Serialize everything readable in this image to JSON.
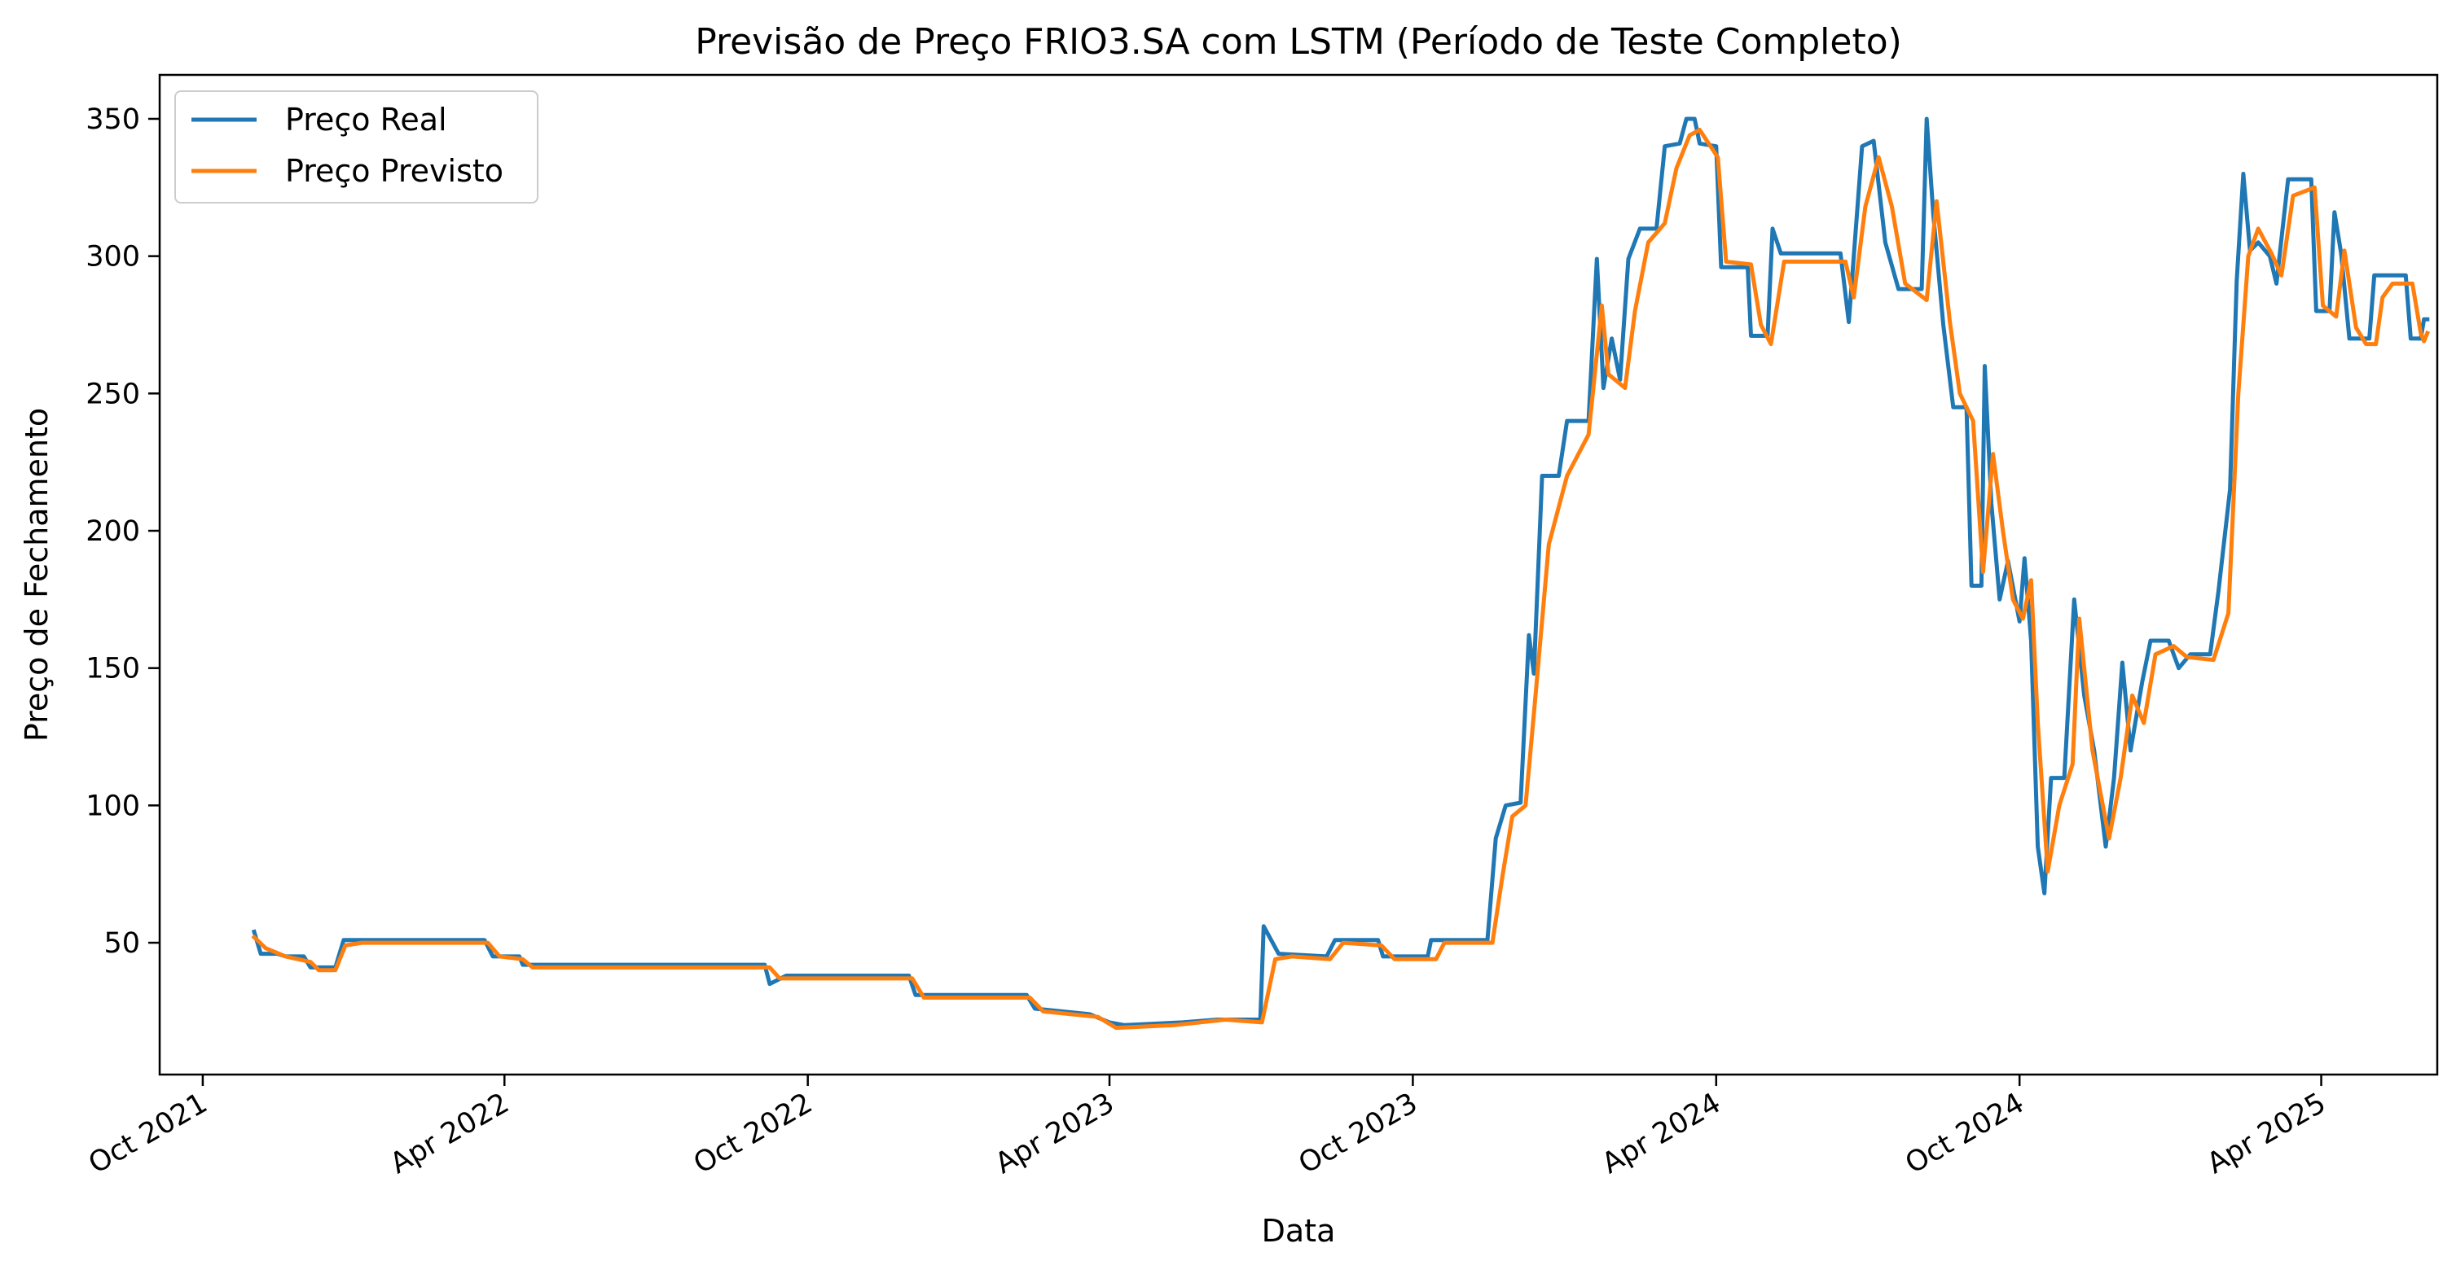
{
  "chart_data": {
    "type": "line",
    "title": "Previsão de Preço FRIO3.SA com LSTM (Período de Teste Completo)",
    "xlabel": "Data",
    "ylabel": "Preço de Fechamento",
    "xlim": [
      "2021-09-05",
      "2025-06-10"
    ],
    "ylim": [
      2,
      366
    ],
    "x_ticks": [
      {
        "date": "2021-10-01",
        "label": "Oct 2021"
      },
      {
        "date": "2022-04-01",
        "label": "Apr 2022"
      },
      {
        "date": "2022-10-01",
        "label": "Oct 2022"
      },
      {
        "date": "2023-04-01",
        "label": "Apr 2023"
      },
      {
        "date": "2023-10-01",
        "label": "Oct 2023"
      },
      {
        "date": "2024-04-01",
        "label": "Apr 2024"
      },
      {
        "date": "2024-10-01",
        "label": "Oct 2024"
      },
      {
        "date": "2025-04-01",
        "label": "Apr 2025"
      }
    ],
    "y_ticks": [
      50,
      100,
      150,
      200,
      250,
      300,
      350
    ],
    "grid": false,
    "legend_position": "top-left",
    "series": [
      {
        "name": "Preço Real",
        "color": "#1f77b4",
        "points": [
          [
            "2021-11-01",
            54
          ],
          [
            "2021-11-05",
            46
          ],
          [
            "2021-11-15",
            46
          ],
          [
            "2021-11-20",
            45
          ],
          [
            "2021-12-01",
            45
          ],
          [
            "2021-12-05",
            41
          ],
          [
            "2021-12-20",
            41
          ],
          [
            "2021-12-25",
            51
          ],
          [
            "2022-03-20",
            51
          ],
          [
            "2022-03-25",
            45
          ],
          [
            "2022-04-10",
            45
          ],
          [
            "2022-04-12",
            42
          ],
          [
            "2022-09-05",
            42
          ],
          [
            "2022-09-08",
            35
          ],
          [
            "2022-09-18",
            38
          ],
          [
            "2022-12-01",
            38
          ],
          [
            "2022-12-05",
            31
          ],
          [
            "2023-02-10",
            31
          ],
          [
            "2023-02-15",
            26
          ],
          [
            "2023-03-20",
            24
          ],
          [
            "2023-04-01",
            21
          ],
          [
            "2023-04-10",
            20
          ],
          [
            "2023-05-15",
            21
          ],
          [
            "2023-06-05",
            22
          ],
          [
            "2023-07-01",
            22
          ],
          [
            "2023-07-03",
            56
          ],
          [
            "2023-07-12",
            46
          ],
          [
            "2023-08-10",
            45
          ],
          [
            "2023-08-15",
            51
          ],
          [
            "2023-09-10",
            51
          ],
          [
            "2023-09-13",
            45
          ],
          [
            "2023-10-10",
            45
          ],
          [
            "2023-10-12",
            51
          ],
          [
            "2023-11-15",
            51
          ],
          [
            "2023-11-20",
            88
          ],
          [
            "2023-11-26",
            100
          ],
          [
            "2023-12-05",
            101
          ],
          [
            "2023-12-10",
            162
          ],
          [
            "2023-12-13",
            148
          ],
          [
            "2023-12-18",
            220
          ],
          [
            "2023-12-28",
            220
          ],
          [
            "2024-01-02",
            240
          ],
          [
            "2024-01-15",
            240
          ],
          [
            "2024-01-20",
            299
          ],
          [
            "2024-01-24",
            252
          ],
          [
            "2024-01-29",
            270
          ],
          [
            "2024-02-03",
            255
          ],
          [
            "2024-02-08",
            299
          ],
          [
            "2024-02-15",
            310
          ],
          [
            "2024-02-25",
            310
          ],
          [
            "2024-03-01",
            340
          ],
          [
            "2024-03-10",
            341
          ],
          [
            "2024-03-14",
            350
          ],
          [
            "2024-03-19",
            350
          ],
          [
            "2024-03-22",
            341
          ],
          [
            "2024-04-01",
            340
          ],
          [
            "2024-04-04",
            296
          ],
          [
            "2024-04-20",
            296
          ],
          [
            "2024-04-22",
            271
          ],
          [
            "2024-05-02",
            271
          ],
          [
            "2024-05-05",
            310
          ],
          [
            "2024-05-10",
            301
          ],
          [
            "2024-06-15",
            301
          ],
          [
            "2024-06-20",
            276
          ],
          [
            "2024-06-28",
            340
          ],
          [
            "2024-07-05",
            342
          ],
          [
            "2024-07-12",
            305
          ],
          [
            "2024-07-20",
            288
          ],
          [
            "2024-08-03",
            288
          ],
          [
            "2024-08-06",
            350
          ],
          [
            "2024-08-10",
            315
          ],
          [
            "2024-08-16",
            275
          ],
          [
            "2024-08-22",
            245
          ],
          [
            "2024-08-30",
            245
          ],
          [
            "2024-09-02",
            180
          ],
          [
            "2024-09-08",
            180
          ],
          [
            "2024-09-10",
            260
          ],
          [
            "2024-09-14",
            210
          ],
          [
            "2024-09-19",
            175
          ],
          [
            "2024-09-24",
            189
          ],
          [
            "2024-10-01",
            167
          ],
          [
            "2024-10-04",
            190
          ],
          [
            "2024-10-08",
            160
          ],
          [
            "2024-10-12",
            85
          ],
          [
            "2024-10-16",
            68
          ],
          [
            "2024-10-20",
            110
          ],
          [
            "2024-10-28",
            110
          ],
          [
            "2024-11-03",
            175
          ],
          [
            "2024-11-09",
            140
          ],
          [
            "2024-11-15",
            120
          ],
          [
            "2024-11-22",
            85
          ],
          [
            "2024-11-27",
            110
          ],
          [
            "2024-12-02",
            152
          ],
          [
            "2024-12-07",
            120
          ],
          [
            "2024-12-14",
            145
          ],
          [
            "2024-12-19",
            160
          ],
          [
            "2024-12-30",
            160
          ],
          [
            "2025-01-05",
            150
          ],
          [
            "2025-01-12",
            155
          ],
          [
            "2025-01-24",
            155
          ],
          [
            "2025-01-29",
            178
          ],
          [
            "2025-02-05",
            215
          ],
          [
            "2025-02-09",
            291
          ],
          [
            "2025-02-13",
            330
          ],
          [
            "2025-02-17",
            302
          ],
          [
            "2025-02-22",
            305
          ],
          [
            "2025-03-01",
            300
          ],
          [
            "2025-03-05",
            290
          ],
          [
            "2025-03-12",
            328
          ],
          [
            "2025-03-26",
            328
          ],
          [
            "2025-03-29",
            280
          ],
          [
            "2025-04-06",
            280
          ],
          [
            "2025-04-09",
            316
          ],
          [
            "2025-04-13",
            301
          ],
          [
            "2025-04-18",
            270
          ],
          [
            "2025-04-30",
            270
          ],
          [
            "2025-05-03",
            293
          ],
          [
            "2025-05-22",
            293
          ],
          [
            "2025-05-25",
            270
          ],
          [
            "2025-05-31",
            270
          ],
          [
            "2025-06-02",
            277
          ],
          [
            "2025-06-04",
            277
          ]
        ]
      },
      {
        "name": "Preço Previsto",
        "color": "#ff7f0e",
        "points": [
          [
            "2021-11-01",
            52
          ],
          [
            "2021-11-08",
            48
          ],
          [
            "2021-11-20",
            45
          ],
          [
            "2021-12-05",
            43
          ],
          [
            "2021-12-10",
            40
          ],
          [
            "2021-12-20",
            40
          ],
          [
            "2021-12-26",
            49
          ],
          [
            "2022-01-05",
            50
          ],
          [
            "2022-03-22",
            50
          ],
          [
            "2022-03-29",
            45
          ],
          [
            "2022-04-12",
            44
          ],
          [
            "2022-04-18",
            41
          ],
          [
            "2022-09-08",
            41
          ],
          [
            "2022-09-14",
            37
          ],
          [
            "2022-09-25",
            37
          ],
          [
            "2022-12-03",
            37
          ],
          [
            "2022-12-10",
            30
          ],
          [
            "2023-02-12",
            30
          ],
          [
            "2023-02-20",
            25
          ],
          [
            "2023-03-25",
            23
          ],
          [
            "2023-04-05",
            19
          ],
          [
            "2023-05-10",
            20
          ],
          [
            "2023-06-10",
            22
          ],
          [
            "2023-07-02",
            21
          ],
          [
            "2023-07-10",
            44
          ],
          [
            "2023-07-20",
            45
          ],
          [
            "2023-08-12",
            44
          ],
          [
            "2023-08-20",
            50
          ],
          [
            "2023-09-12",
            49
          ],
          [
            "2023-09-20",
            44
          ],
          [
            "2023-10-15",
            44
          ],
          [
            "2023-10-20",
            50
          ],
          [
            "2023-11-18",
            50
          ],
          [
            "2023-11-24",
            74
          ],
          [
            "2023-11-30",
            96
          ],
          [
            "2023-12-08",
            100
          ],
          [
            "2023-12-14",
            140
          ],
          [
            "2023-12-22",
            195
          ],
          [
            "2024-01-02",
            220
          ],
          [
            "2024-01-15",
            235
          ],
          [
            "2024-01-23",
            282
          ],
          [
            "2024-01-27",
            257
          ],
          [
            "2024-02-06",
            252
          ],
          [
            "2024-02-12",
            280
          ],
          [
            "2024-02-20",
            305
          ],
          [
            "2024-03-01",
            312
          ],
          [
            "2024-03-08",
            332
          ],
          [
            "2024-03-16",
            344
          ],
          [
            "2024-03-22",
            346
          ],
          [
            "2024-04-02",
            336
          ],
          [
            "2024-04-07",
            298
          ],
          [
            "2024-04-22",
            297
          ],
          [
            "2024-04-28",
            275
          ],
          [
            "2024-05-04",
            268
          ],
          [
            "2024-05-12",
            298
          ],
          [
            "2024-06-18",
            298
          ],
          [
            "2024-06-23",
            285
          ],
          [
            "2024-06-30",
            318
          ],
          [
            "2024-07-08",
            336
          ],
          [
            "2024-07-16",
            318
          ],
          [
            "2024-07-24",
            290
          ],
          [
            "2024-08-06",
            284
          ],
          [
            "2024-08-12",
            320
          ],
          [
            "2024-08-20",
            276
          ],
          [
            "2024-08-26",
            250
          ],
          [
            "2024-09-03",
            240
          ],
          [
            "2024-09-09",
            185
          ],
          [
            "2024-09-15",
            228
          ],
          [
            "2024-09-21",
            200
          ],
          [
            "2024-09-27",
            175
          ],
          [
            "2024-10-03",
            168
          ],
          [
            "2024-10-08",
            182
          ],
          [
            "2024-10-12",
            130
          ],
          [
            "2024-10-18",
            76
          ],
          [
            "2024-10-25",
            100
          ],
          [
            "2024-11-02",
            115
          ],
          [
            "2024-11-06",
            168
          ],
          [
            "2024-11-14",
            120
          ],
          [
            "2024-11-24",
            88
          ],
          [
            "2024-12-01",
            110
          ],
          [
            "2024-12-08",
            140
          ],
          [
            "2024-12-15",
            130
          ],
          [
            "2024-12-22",
            155
          ],
          [
            "2025-01-02",
            158
          ],
          [
            "2025-01-10",
            154
          ],
          [
            "2025-01-26",
            153
          ],
          [
            "2025-02-04",
            170
          ],
          [
            "2025-02-10",
            250
          ],
          [
            "2025-02-16",
            300
          ],
          [
            "2025-02-22",
            310
          ],
          [
            "2025-03-02",
            301
          ],
          [
            "2025-03-08",
            293
          ],
          [
            "2025-03-15",
            322
          ],
          [
            "2025-03-28",
            325
          ],
          [
            "2025-04-02",
            282
          ],
          [
            "2025-04-10",
            278
          ],
          [
            "2025-04-15",
            302
          ],
          [
            "2025-04-22",
            274
          ],
          [
            "2025-04-28",
            268
          ],
          [
            "2025-05-04",
            268
          ],
          [
            "2025-05-08",
            285
          ],
          [
            "2025-05-14",
            290
          ],
          [
            "2025-05-26",
            290
          ],
          [
            "2025-05-31",
            272
          ],
          [
            "2025-06-02",
            269
          ],
          [
            "2025-06-04",
            272
          ]
        ]
      }
    ]
  }
}
